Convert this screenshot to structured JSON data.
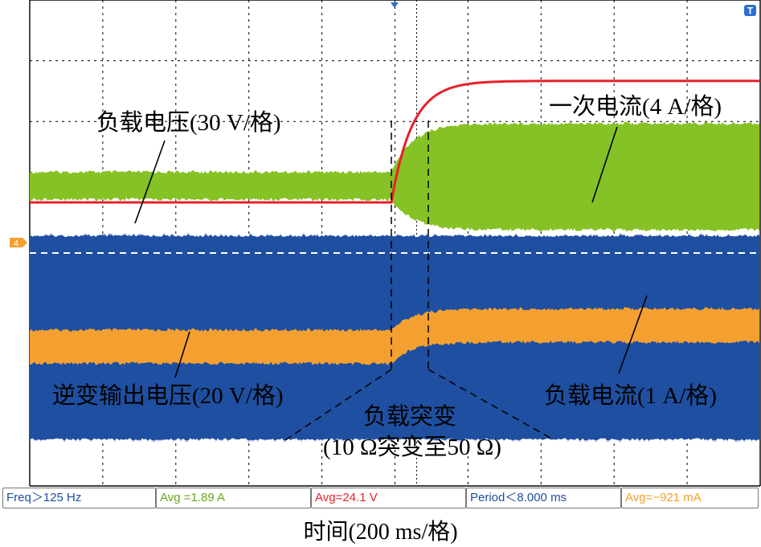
{
  "chart_data": {
    "type": "line",
    "xlabel": "时间(200 ms/格)",
    "grid": true,
    "grid_divisions": {
      "x": 10,
      "y": 8
    },
    "trigger_marker": "T",
    "channel_marker": "4",
    "transition_label": "负载突变",
    "transition_sub_label": "(10 Ω突变至50 Ω)",
    "series": [
      {
        "name": "逆变输出电压(20 V/格)",
        "color": "#1f4fa0",
        "style": "band",
        "top_before": 0.25,
        "bottom_before": -3.1,
        "top_after": 0.25,
        "bottom_after": -3.1
      },
      {
        "name": "一次电流(4 A/格)",
        "color": "#86c226",
        "style": "band",
        "top_before": 1.3,
        "bottom_before": 0.85,
        "top_after": 2.1,
        "bottom_after": 0.35
      },
      {
        "name": "负载电压(30 V/格)",
        "color": "#e8202a",
        "style": "line",
        "before": 0.8,
        "after": 2.8
      },
      {
        "name": "负载电流(1 A/格)",
        "color": "#f4a030",
        "style": "band",
        "top_before": -1.3,
        "bottom_before": -1.85,
        "top_after": -0.95,
        "bottom_after": -1.5
      }
    ],
    "measurements": [
      {
        "label": "Freq＞125 Hz",
        "color": "#1f4fa0"
      },
      {
        "label": "Avg =1.89 A",
        "color": "#6aa51e"
      },
      {
        "label": "Avg=24.1 V",
        "color": "#e8202a"
      },
      {
        "label": "Period＜8.000 ms",
        "color": "#1f4fa0"
      },
      {
        "label": "Avg=−921 mA",
        "color": "#f4a030"
      }
    ]
  }
}
